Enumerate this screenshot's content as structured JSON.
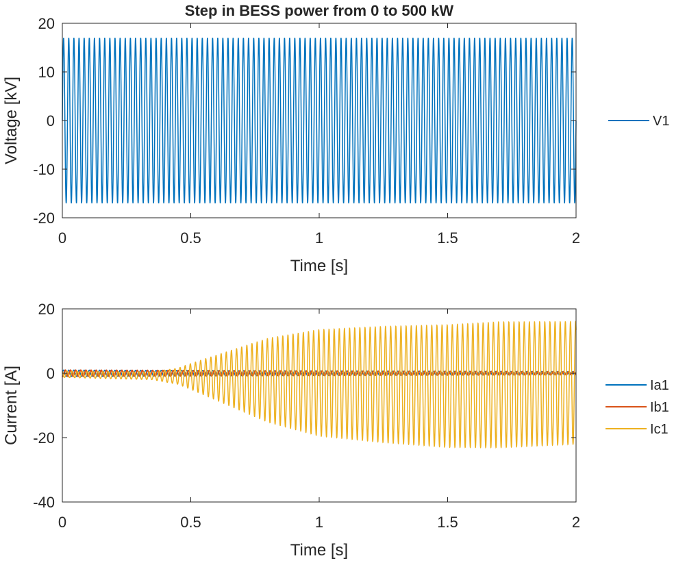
{
  "chart_data": [
    {
      "type": "line",
      "title": "Step in BESS power from 0 to 500 kW",
      "xlabel": "Time [s]",
      "ylabel": "Voltage [kV]",
      "xlim": [
        0,
        2
      ],
      "ylim": [
        -20,
        20
      ],
      "xticks": [
        "0",
        "0.5",
        "1",
        "1.5",
        "2"
      ],
      "yticks": [
        "-20",
        "-10",
        "0",
        "10",
        "20"
      ],
      "grid": false,
      "legend": "outside-right",
      "frequency_hz": 50,
      "series": [
        {
          "name": "V1",
          "color": "#0072BD",
          "kind": "sinusoid",
          "amplitude_envelope": [
            [
              0,
              17
            ],
            [
              2,
              17
            ]
          ],
          "offset": 0
        }
      ]
    },
    {
      "type": "line",
      "title": "",
      "xlabel": "Time [s]",
      "ylabel": "Current [A]",
      "xlim": [
        0,
        2
      ],
      "ylim": [
        -40,
        20
      ],
      "xticks": [
        "0",
        "0.5",
        "1",
        "1.5",
        "2"
      ],
      "yticks": [
        "-40",
        "-20",
        "0",
        "20"
      ],
      "grid": false,
      "legend": "outside-right",
      "frequency_hz": 50,
      "series": [
        {
          "name": "Ia1",
          "color": "#0072BD",
          "kind": "sinusoid",
          "amplitude_envelope": [
            [
              0,
              1.0
            ],
            [
              2,
              0.5
            ]
          ],
          "offset": 0
        },
        {
          "name": "Ib1",
          "color": "#D95319",
          "kind": "sinusoid",
          "amplitude_envelope": [
            [
              0,
              1.0
            ],
            [
              2,
              0.5
            ]
          ],
          "offset": 0
        },
        {
          "name": "Ic1",
          "color": "#EDB120",
          "kind": "sinusoid",
          "amplitude_envelope": [
            [
              0,
              1.0
            ],
            [
              0.35,
              1.2
            ],
            [
              0.45,
              2.5
            ],
            [
              0.6,
              7
            ],
            [
              0.8,
              13
            ],
            [
              1.0,
              16.5
            ],
            [
              1.25,
              18
            ],
            [
              1.5,
              19
            ],
            [
              1.7,
              19.5
            ],
            [
              2,
              19
            ]
          ],
          "offset_envelope": [
            [
              0,
              -0.3
            ],
            [
              0.5,
              -1
            ],
            [
              1.0,
              -3
            ],
            [
              1.5,
              -4
            ],
            [
              2,
              -3
            ]
          ]
        }
      ]
    }
  ]
}
